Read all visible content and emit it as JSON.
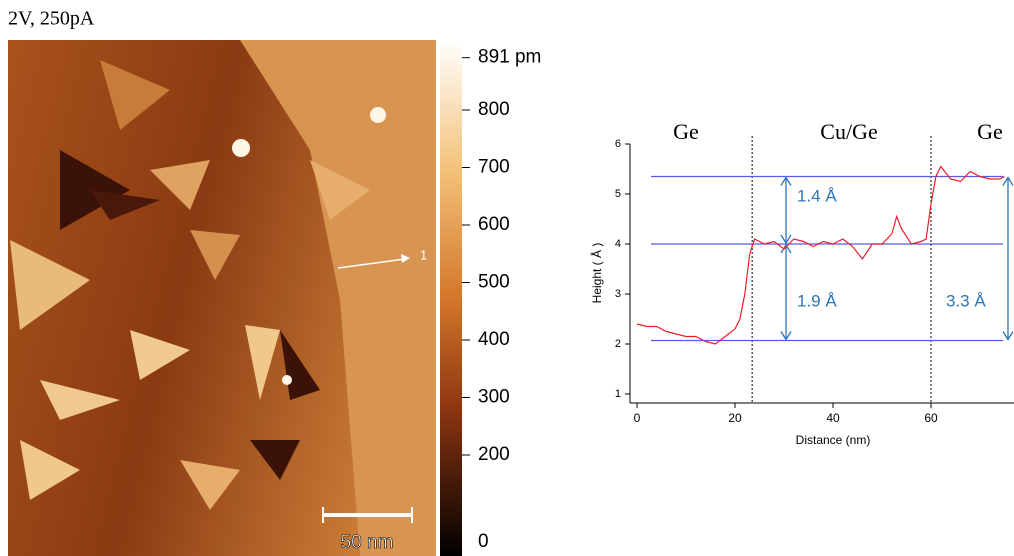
{
  "image": {
    "title": "2V, 250pA",
    "scale_bar": "50 nm",
    "marker": "1",
    "colorbar": {
      "lim": [
        0,
        891
      ],
      "ticks": [
        {
          "value": 891,
          "label": "891 pm"
        },
        800,
        700,
        600,
        500,
        400,
        300,
        200,
        0
      ]
    }
  },
  "chart_data": {
    "type": "line",
    "xlabel": "Distance (nm)",
    "ylabel": "Height ( Å )",
    "x": [
      0,
      2,
      4,
      6,
      8,
      10,
      12,
      14,
      16,
      18,
      20,
      21,
      22,
      23,
      24,
      26,
      28,
      30,
      32,
      34,
      36,
      38,
      40,
      42,
      44,
      46,
      48,
      50,
      52,
      53,
      54,
      56,
      58,
      59,
      60,
      61,
      62,
      64,
      66,
      68,
      70,
      72,
      74,
      75
    ],
    "series": [
      {
        "name": "Height",
        "color": "#e8202a",
        "values": [
          2.4,
          2.35,
          2.35,
          2.25,
          2.2,
          2.15,
          2.15,
          2.05,
          2.0,
          2.15,
          2.3,
          2.5,
          3.0,
          3.8,
          4.1,
          4.0,
          4.05,
          3.9,
          4.1,
          4.05,
          3.95,
          4.05,
          4.0,
          4.1,
          3.95,
          3.7,
          4.0,
          4.0,
          4.2,
          4.55,
          4.3,
          4.0,
          4.05,
          4.1,
          4.8,
          5.35,
          5.55,
          5.3,
          5.25,
          5.45,
          5.35,
          5.3,
          5.3,
          5.35
        ]
      }
    ],
    "xlim": [
      -1.5,
      77
    ],
    "xticks": [
      0,
      20,
      40,
      60
    ],
    "ylim": [
      0.8,
      6
    ],
    "yticks": [
      1,
      2,
      3,
      4,
      5,
      6
    ],
    "levels": [
      5.35,
      4.0,
      2.07
    ],
    "level_color": "#5a5ae6",
    "dividers": [
      23.5,
      60
    ],
    "regions": [
      "Ge",
      "Cu/Ge",
      "Ge"
    ],
    "steps": [
      "1.4 Å",
      "1.9 Å",
      "3.3 Å"
    ],
    "step_color": "#2e75b6"
  }
}
